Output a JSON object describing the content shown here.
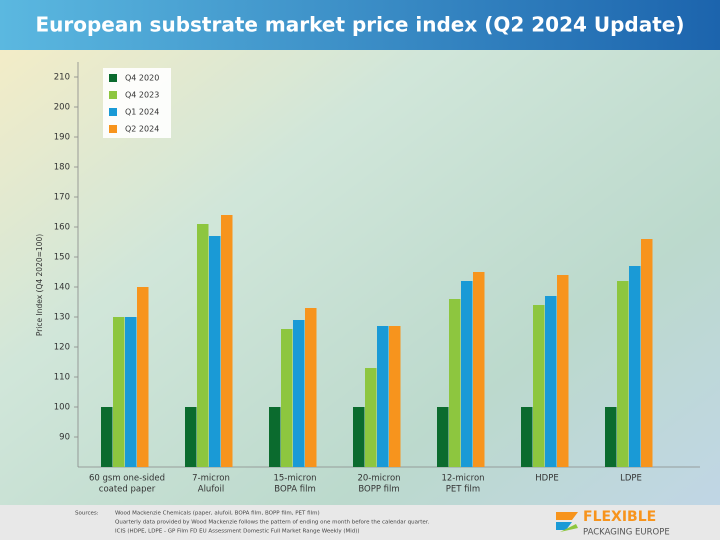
{
  "chart_data": {
    "type": "bar",
    "title": "European substrate market price index (Q2 2024 Update)",
    "y_label": "Price Index (Q4 2020=100)",
    "categories": [
      [
        "60 gsm one-sided",
        "coated paper"
      ],
      [
        "7-micron",
        "Alufoil"
      ],
      [
        "15-micron",
        "BOPA film"
      ],
      [
        "20-micron",
        "BOPP film"
      ],
      [
        "12-micron",
        "PET film"
      ],
      [
        "HDPE"
      ],
      [
        "LDPE"
      ]
    ],
    "series": [
      {
        "name": "Q4 2020",
        "color": "#0b6b2e",
        "values": [
          100,
          100,
          100,
          100,
          100,
          100,
          100
        ]
      },
      {
        "name": "Q4 2023",
        "color": "#8dc63f",
        "values": [
          130,
          161,
          126,
          113,
          136,
          134,
          142
        ]
      },
      {
        "name": "Q1 2024",
        "color": "#1a9ad6",
        "values": [
          130,
          157,
          129,
          127,
          142,
          137,
          147
        ]
      },
      {
        "name": "Q2 2024",
        "color": "#f7941d",
        "values": [
          140,
          164,
          133,
          127,
          145,
          144,
          156
        ]
      }
    ],
    "ylim": [
      80,
      215
    ],
    "yticks": [
      90,
      100,
      110,
      120,
      130,
      140,
      150,
      160,
      170,
      180,
      190,
      200,
      210
    ],
    "legend": "upper left"
  },
  "footer": {
    "sources_label": "Sources:",
    "sources": [
      "Wood Mackenzie Chemicals (paper, alufoil, BOPA film, BOPP film, PET film)",
      "Quarterly data provided by Wood Mackenzie follows the pattern of ending one month before the calendar quarter.",
      "ICIS (HDPE, LDPE - GP Film FD EU Assessment Domestic Full Market Range Weekly (Mid))"
    ],
    "logo_top": "FLEXIBLE",
    "logo_bottom": "PACKAGING EUROPE"
  }
}
